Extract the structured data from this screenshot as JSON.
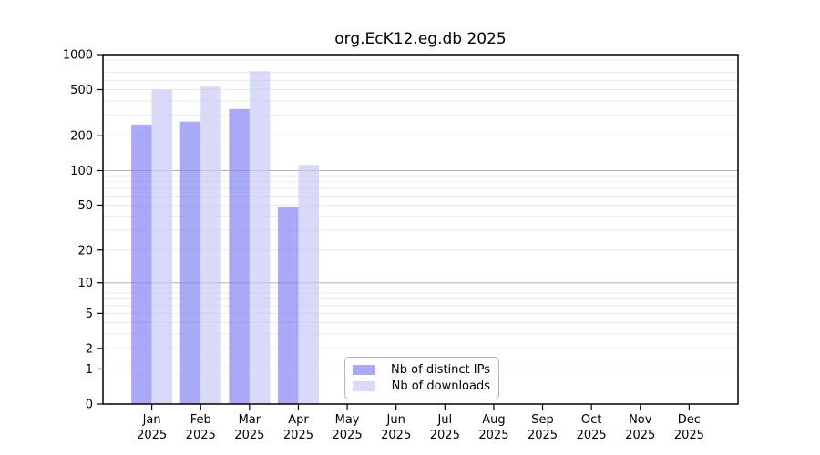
{
  "chart_data": {
    "type": "bar",
    "title": "org.EcK12.eg.db 2025",
    "categories": [
      "Jan 2025",
      "Feb 2025",
      "Mar 2025",
      "Apr 2025",
      "May 2025",
      "Jun 2025",
      "Jul 2025",
      "Aug 2025",
      "Sep 2025",
      "Oct 2025",
      "Nov 2025",
      "Dec 2025"
    ],
    "x_tick_months": [
      "Jan",
      "Feb",
      "Mar",
      "Apr",
      "May",
      "Jun",
      "Jul",
      "Aug",
      "Sep",
      "Oct",
      "Nov",
      "Dec"
    ],
    "x_tick_year": "2025",
    "series": [
      {
        "name": "Nb of distinct IPs",
        "color": "#a9a9f8",
        "fill_rgba": "rgba(132,132,245,0.7)",
        "values": [
          250,
          265,
          340,
          48,
          null,
          null,
          null,
          null,
          null,
          null,
          null,
          null
        ]
      },
      {
        "name": "Nb of downloads",
        "color": "#d9d9f8",
        "fill_rgba": "rgba(201,201,245,0.7)",
        "values": [
          500,
          530,
          720,
          112,
          null,
          null,
          null,
          null,
          null,
          null,
          null,
          null
        ]
      }
    ],
    "yscale": "log1p",
    "ylim": [
      0,
      1000
    ],
    "y_ticks": [
      0,
      1,
      2,
      5,
      10,
      20,
      50,
      100,
      200,
      500,
      1000
    ],
    "grid": {
      "shown": true,
      "minor_values": [
        2,
        3,
        4,
        5,
        6,
        7,
        8,
        9,
        20,
        30,
        40,
        50,
        60,
        70,
        80,
        90,
        200,
        300,
        400,
        500,
        600,
        700,
        800,
        900
      ],
      "major_values": [
        1,
        10,
        100,
        1000
      ],
      "minor_color": "#eaeaea",
      "major_color": "#b0b0b0"
    },
    "legend_position": "bottom-center",
    "axis_color": "#000000",
    "tick_label_color": "#000000"
  }
}
